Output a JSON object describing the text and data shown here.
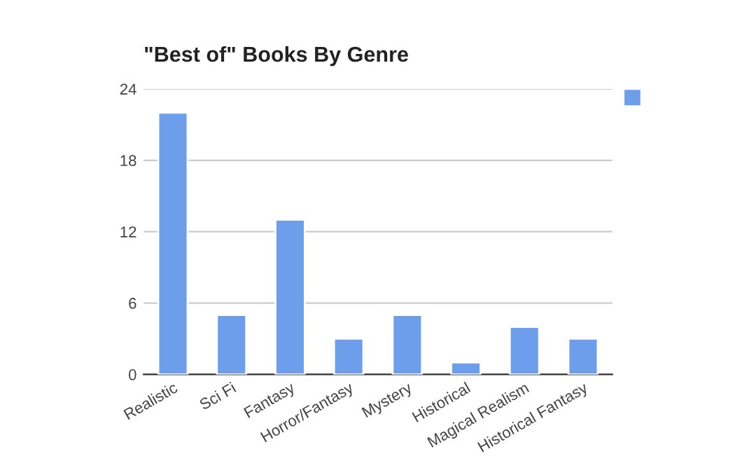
{
  "chart_data": {
    "type": "bar",
    "title": "\"Best of\" Books By Genre",
    "categories": [
      "Realistic",
      "Sci Fi",
      "Fantasy",
      "Horror/Fantasy",
      "Mystery",
      "Historical",
      "Magical Realism",
      "Historical Fantasy"
    ],
    "series": [
      {
        "color": "#6d9eeb",
        "values": [
          22,
          5,
          13,
          3,
          5,
          1,
          4,
          3
        ]
      }
    ],
    "ylim": [
      0,
      24
    ],
    "yticks": [
      0,
      6,
      12,
      18,
      24
    ],
    "grid": "y"
  }
}
